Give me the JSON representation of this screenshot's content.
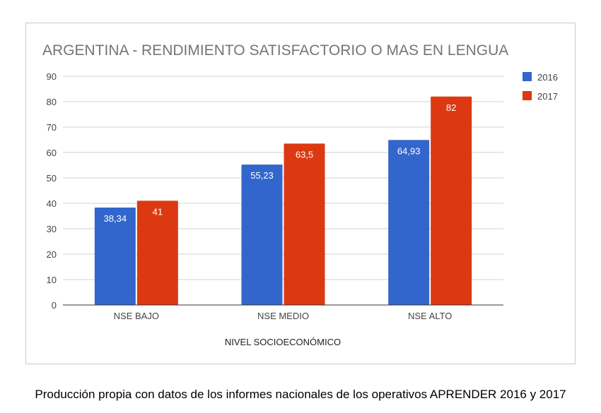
{
  "chart_data": {
    "type": "bar",
    "title": "ARGENTINA - RENDIMIENTO SATISFACTORIO O MAS EN LENGUA",
    "xlabel": "NIVEL SOCIOECONÓMICO",
    "ylabel": "",
    "ylim": [
      0,
      90
    ],
    "yticks": [
      "0",
      "10",
      "20",
      "30",
      "40",
      "50",
      "60",
      "70",
      "80",
      "90"
    ],
    "grid": true,
    "legend_position": "top-right",
    "categories": [
      "NSE BAJO",
      "NSE MEDIO",
      "NSE ALTO"
    ],
    "series": [
      {
        "name": "2016",
        "color": "#3366cc",
        "values": [
          38.34,
          55.23,
          64.93
        ],
        "labels": [
          "38,34",
          "55,23",
          "64,93"
        ]
      },
      {
        "name": "2017",
        "color": "#dc3912",
        "values": [
          41,
          63.5,
          82
        ],
        "labels": [
          "41",
          "63,5",
          "82"
        ]
      }
    ]
  },
  "caption": "Producción propia con datos de los informes nacionales de los operativos APRENDER 2016 y 2017"
}
